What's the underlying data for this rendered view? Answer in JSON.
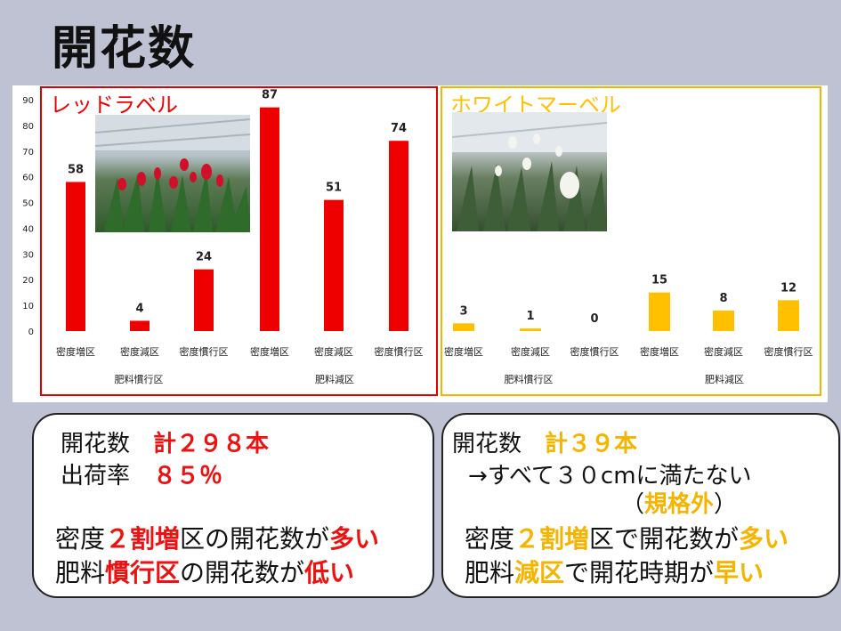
{
  "title": "開花数",
  "chart_data": [
    {
      "type": "bar",
      "title": "レッドラベル",
      "categories": [
        "密度増区",
        "密度減区",
        "密度慣行区",
        "密度増区",
        "密度減区",
        "密度慣行区"
      ],
      "groups": [
        {
          "label": "肥料慣行区",
          "categories": [
            "密度増区",
            "密度減区",
            "密度慣行区"
          ]
        },
        {
          "label": "肥料減区",
          "categories": [
            "密度増区",
            "密度減区",
            "密度慣行区"
          ]
        }
      ],
      "values": [
        58,
        4,
        24,
        87,
        51,
        74
      ],
      "ylim": [
        0,
        90
      ],
      "yticks": [
        0,
        10,
        20,
        30,
        40,
        50,
        60,
        70,
        80,
        90
      ],
      "color": "#ee0000"
    },
    {
      "type": "bar",
      "title": "ホワイトマーベル",
      "categories": [
        "密度増区",
        "密度減区",
        "密度慣行区",
        "密度増区",
        "密度減区",
        "密度慣行区"
      ],
      "groups": [
        {
          "label": "肥料慣行区",
          "categories": [
            "密度増区",
            "密度減区",
            "密度慣行区"
          ]
        },
        {
          "label": "肥料減区",
          "categories": [
            "密度増区",
            "密度減区",
            "密度慣行区"
          ]
        }
      ],
      "values": [
        3,
        1,
        0,
        15,
        8,
        12
      ],
      "ylim": [
        0,
        90
      ],
      "color": "#ffc000"
    }
  ],
  "left_box": {
    "line1": {
      "a": "開花数　",
      "b": "計２９８本"
    },
    "line2": {
      "a": "出荷率　",
      "b": "８５％"
    },
    "line3": {
      "a": "密度",
      "b": "２割増",
      "c": "区の開花数が",
      "d": "多い"
    },
    "line4": {
      "a": "肥料",
      "b": "慣行区",
      "c": "の開花数が",
      "d": "低い"
    }
  },
  "right_box": {
    "line1": {
      "a": "開花数　",
      "b": "計３９本"
    },
    "line2": "→すべて３０cmに満たない",
    "line3": {
      "a": "（",
      "b": "規格外",
      "c": "）"
    },
    "line4": {
      "a": "密度",
      "b": "２割増",
      "c": "区で開花数が",
      "d": "多い"
    },
    "line5": {
      "a": "肥料",
      "b": "減区",
      "c": "で開花時期が",
      "d": "早い"
    }
  },
  "photos": {
    "left": "red-tulips-photo",
    "right": "white-tulips-photo"
  }
}
